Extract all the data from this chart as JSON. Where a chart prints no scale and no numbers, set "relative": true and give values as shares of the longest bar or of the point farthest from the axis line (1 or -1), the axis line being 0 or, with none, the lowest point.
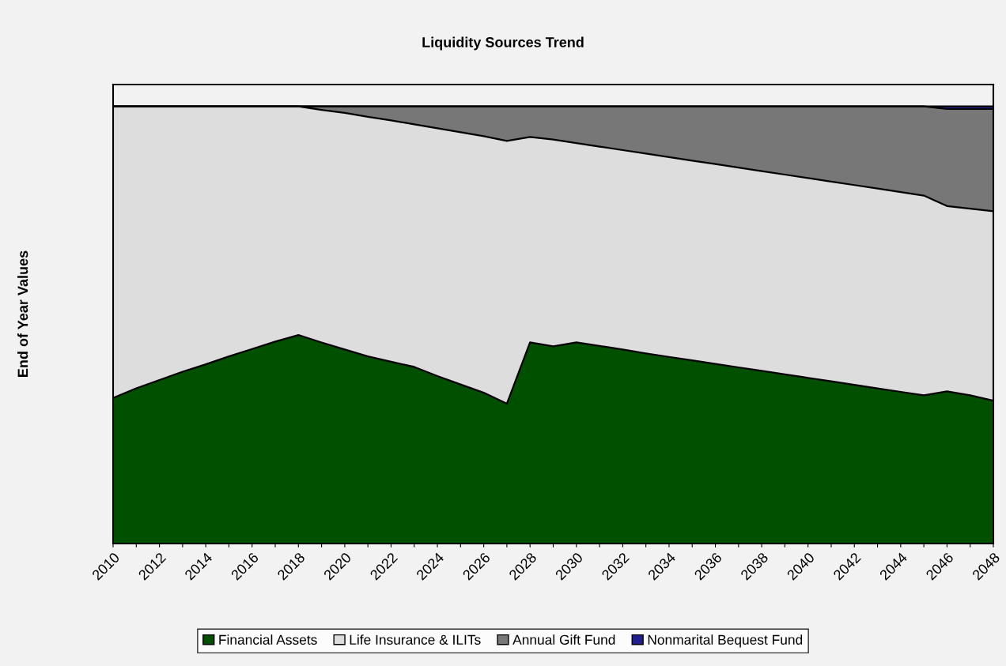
{
  "chart_data": {
    "type": "area",
    "title": "Liquidity Sources Trend",
    "ylabel": "End of Year Values",
    "stacked": true,
    "relative": true,
    "legend": "bottom",
    "grid": false,
    "categories": [
      "2010",
      null,
      "2012",
      null,
      "2014",
      null,
      "2016",
      null,
      "2018",
      null,
      "2020",
      null,
      "2022",
      null,
      "2024",
      null,
      "2026",
      null,
      "2028",
      null,
      "2030",
      null,
      "2032",
      null,
      "2034",
      null,
      "2036",
      null,
      "2038",
      null,
      "2040",
      null,
      "2042",
      null,
      "2044",
      null,
      "2046",
      null,
      "2048"
    ],
    "series": [
      {
        "name": "Financial Assets",
        "color": "#005000",
        "values": [
          0.333,
          0.355,
          0.374,
          0.393,
          0.41,
          0.428,
          0.445,
          0.462,
          0.477,
          0.46,
          0.444,
          0.428,
          0.416,
          0.404,
          0.383,
          0.364,
          0.345,
          0.32,
          0.46,
          0.451,
          0.46,
          0.452,
          0.444,
          0.435,
          0.427,
          0.419,
          0.411,
          0.403,
          0.395,
          0.387,
          0.379,
          0.371,
          0.363,
          0.355,
          0.347,
          0.339,
          0.348,
          0.339,
          0.327
        ]
      },
      {
        "name": "Life Insurance & ILITs",
        "color": "#dddddd",
        "values": [
          0.667,
          0.645,
          0.626,
          0.607,
          0.59,
          0.572,
          0.555,
          0.538,
          0.523,
          0.532,
          0.541,
          0.548,
          0.552,
          0.555,
          0.567,
          0.577,
          0.587,
          0.601,
          0.47,
          0.473,
          0.456,
          0.456,
          0.456,
          0.457,
          0.457,
          0.457,
          0.457,
          0.457,
          0.457,
          0.457,
          0.457,
          0.457,
          0.457,
          0.457,
          0.457,
          0.457,
          0.424,
          0.427,
          0.433
        ]
      },
      {
        "name": "Annual Gift Fund",
        "color": "#777777",
        "values": [
          0,
          0,
          0,
          0,
          0,
          0,
          0,
          0,
          0,
          0.008,
          0.015,
          0.024,
          0.032,
          0.041,
          0.05,
          0.059,
          0.068,
          0.079,
          0.07,
          0.076,
          0.084,
          0.092,
          0.1,
          0.108,
          0.116,
          0.124,
          0.132,
          0.14,
          0.148,
          0.156,
          0.164,
          0.172,
          0.18,
          0.188,
          0.196,
          0.204,
          0.222,
          0.228,
          0.234
        ]
      },
      {
        "name": "Nonmarital Bequest Fund",
        "color": "#1f1f8f",
        "values": [
          0,
          0,
          0,
          0,
          0,
          0,
          0,
          0,
          0,
          0,
          0,
          0,
          0,
          0,
          0,
          0,
          0,
          0,
          0,
          0,
          0,
          0,
          0,
          0,
          0,
          0,
          0,
          0,
          0,
          0,
          0,
          0,
          0,
          0,
          0,
          0,
          0.006,
          0.006,
          0.006
        ]
      }
    ]
  }
}
